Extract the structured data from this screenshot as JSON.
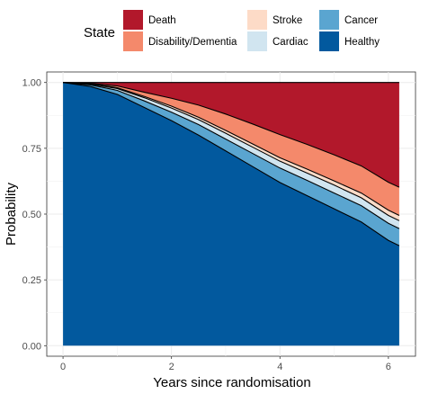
{
  "chart_data": {
    "type": "area",
    "stacked": true,
    "xlabel": "Years since randomisation",
    "ylabel": "Probability",
    "xlim": [
      -0.3,
      6.5
    ],
    "ylim": [
      -0.04,
      1.04
    ],
    "xticks": [
      0,
      2,
      4,
      6
    ],
    "xtick_labels": [
      "0",
      "2",
      "4",
      "6"
    ],
    "yticks": [
      0,
      0.25,
      0.5,
      0.75,
      1
    ],
    "ytick_labels": [
      "0.00",
      "0.25",
      "0.50",
      "0.75",
      "1.00"
    ],
    "grid": true,
    "legend": {
      "title": "State",
      "placement": "top",
      "entries": [
        {
          "label": "Death",
          "color": "#b2182b"
        },
        {
          "label": "Disability/Dementia",
          "color": "#f4896b"
        },
        {
          "label": "Stroke",
          "color": "#fddbc7"
        },
        {
          "label": "Cardiac",
          "color": "#d1e5f0"
        },
        {
          "label": "Cancer",
          "color": "#5aa5d0"
        },
        {
          "label": "Healthy",
          "color": "#02599e"
        }
      ]
    },
    "x": [
      0,
      0.5,
      1,
      1.5,
      2,
      2.5,
      3,
      3.5,
      4,
      4.5,
      5,
      5.5,
      6,
      6.2
    ],
    "series": [
      {
        "name": "Healthy",
        "color": "#02599e",
        "values": [
          1.0,
          0.985,
          0.955,
          0.905,
          0.855,
          0.8,
          0.74,
          0.68,
          0.62,
          0.57,
          0.52,
          0.47,
          0.4,
          0.38
        ]
      },
      {
        "name": "Cancer",
        "color": "#5aa5d0",
        "values": [
          0.0,
          0.006,
          0.015,
          0.025,
          0.032,
          0.04,
          0.045,
          0.05,
          0.055,
          0.058,
          0.06,
          0.062,
          0.065,
          0.065
        ]
      },
      {
        "name": "Cardiac",
        "color": "#d1e5f0",
        "values": [
          0.0,
          0.003,
          0.007,
          0.012,
          0.016,
          0.019,
          0.022,
          0.024,
          0.026,
          0.028,
          0.03,
          0.03,
          0.03,
          0.03
        ]
      },
      {
        "name": "Stroke",
        "color": "#fddbc7",
        "values": [
          0.0,
          0.001,
          0.003,
          0.005,
          0.007,
          0.009,
          0.011,
          0.012,
          0.013,
          0.015,
          0.016,
          0.018,
          0.02,
          0.02
        ]
      },
      {
        "name": "Disability/Dementia",
        "color": "#f4896b",
        "values": [
          0.0,
          0.002,
          0.007,
          0.016,
          0.03,
          0.046,
          0.062,
          0.076,
          0.088,
          0.094,
          0.099,
          0.103,
          0.106,
          0.107
        ]
      },
      {
        "name": "Death",
        "color": "#b2182b",
        "values": [
          0.0,
          0.003,
          0.013,
          0.037,
          0.06,
          0.086,
          0.12,
          0.158,
          0.198,
          0.235,
          0.275,
          0.317,
          0.379,
          0.398
        ]
      }
    ]
  }
}
